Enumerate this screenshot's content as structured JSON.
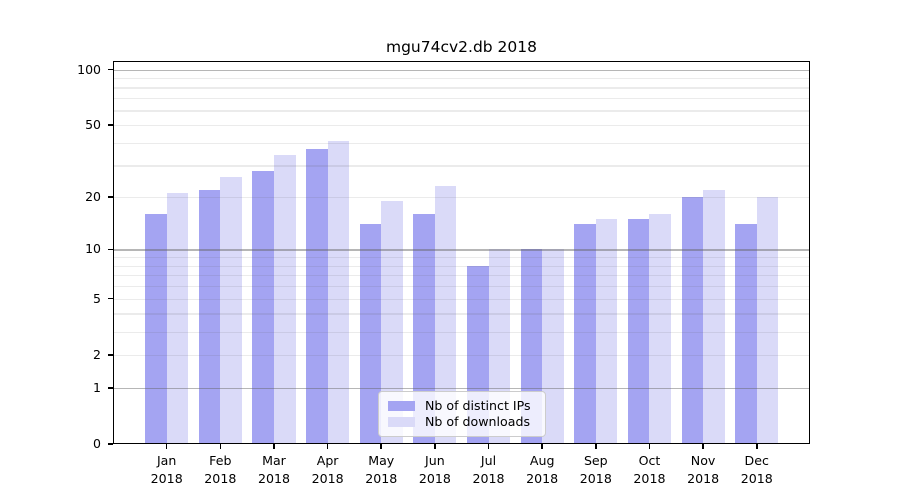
{
  "chart_data": {
    "type": "bar",
    "title": "mgu74cv2.db 2018",
    "yscale": "log1p",
    "ylim": [
      0,
      100
    ],
    "x_categories": [
      "Jan",
      "Feb",
      "Mar",
      "Apr",
      "May",
      "Jun",
      "Jul",
      "Aug",
      "Sep",
      "Oct",
      "Nov",
      "Dec"
    ],
    "x_year": "2018",
    "series": [
      {
        "name": "Nb of distinct IPs",
        "color": "#a4a4f2",
        "values": [
          16,
          22,
          28,
          37,
          14,
          16,
          8,
          10,
          14,
          15,
          20,
          14
        ]
      },
      {
        "name": "Nb of downloads",
        "color": "#dadaf8",
        "values": [
          21,
          26,
          34,
          41,
          19,
          23,
          10,
          10,
          15,
          16,
          22,
          20
        ]
      }
    ],
    "y_tick_labels": [
      "0",
      "1",
      "2",
      "5",
      "10",
      "20",
      "50",
      "100"
    ],
    "y_tick_values": [
      0,
      1,
      2,
      5,
      10,
      20,
      50,
      100
    ],
    "gridlines": {
      "major": [
        1,
        10,
        100
      ],
      "minor": [
        2,
        3,
        4,
        5,
        6,
        7,
        8,
        9,
        20,
        30,
        40,
        50,
        60,
        70,
        80,
        90
      ]
    },
    "legend": {
      "entries": [
        "Nb of distinct IPs",
        "Nb of downloads"
      ],
      "position": "lower center"
    }
  },
  "colors": {
    "background": "#ffffff",
    "spine": "#000000",
    "major_grid": "#b2b2b2",
    "minor_grid": "#ebebeb",
    "text": "#000000",
    "legend_border": "#cccccc"
  }
}
